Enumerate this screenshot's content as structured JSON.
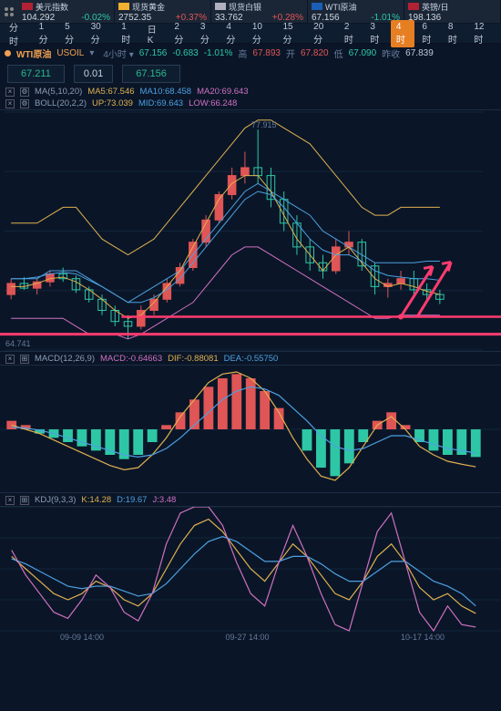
{
  "tickers": [
    {
      "name": "美元指数",
      "price": "104.292",
      "chg": "-0.02%",
      "dir": "neg",
      "flag": "#b22234"
    },
    {
      "name": "现货黄金",
      "price": "2752.35",
      "chg": "+0.37%",
      "dir": "pos",
      "flag": "#f0b030"
    },
    {
      "name": "现货白银",
      "price": "33.762",
      "chg": "+0.28%",
      "dir": "pos",
      "flag": "#b0b0c0"
    },
    {
      "name": "WTI原油",
      "price": "67.156",
      "chg": "-1.01%",
      "dir": "neg",
      "flag": "#1a5fb4"
    },
    {
      "name": "英镑/日",
      "price": "198.136",
      "chg": "",
      "dir": "pos",
      "flag": "#b22234"
    }
  ],
  "timeframes": [
    "分时",
    "1分",
    "5分",
    "30分",
    "1时",
    "日K",
    "2分",
    "3分",
    "4分",
    "10分",
    "15分",
    "20分",
    "2时",
    "3时",
    "4时",
    "6时",
    "8时",
    "12时"
  ],
  "tf_active": "4时",
  "instrument": {
    "name": "WTI原油",
    "code": "USOIL",
    "period": "4小时",
    "last": "67.156",
    "chg": "-0.683",
    "pct": "-1.01%",
    "high_l": "高",
    "high": "67.893",
    "open_l": "开",
    "open": "67.820",
    "low_l": "低",
    "low": "67.090",
    "close_l": "昨收",
    "close": "67.839"
  },
  "priceboxes": {
    "bid": "67.211",
    "mid": "0.01",
    "ask": "67.156"
  },
  "ma": {
    "name": "MA(5,10,20)",
    "v1l": "MA5:",
    "v1": "67.546",
    "v2l": "MA10:",
    "v2": "68.458",
    "v3l": "MA20:",
    "v3": "69.643",
    "c1": "#e0b050",
    "c2": "#4da0e0",
    "c3": "#d070c0"
  },
  "boll": {
    "name": "BOLL(20,2,2)",
    "upl": "UP:",
    "up": "73.039",
    "midl": "MID:",
    "mid": "69.643",
    "lowl": "LOW:",
    "low": "66.248",
    "cu": "#e0b050",
    "cm": "#4da0e0",
    "cl": "#d070c0"
  },
  "price_chart": {
    "high_marker": "77.915",
    "low_marker": "64.741",
    "ylim": [
      64,
      79
    ],
    "boll_up": [
      72,
      72,
      72,
      72.5,
      73,
      73,
      72,
      71,
      70.5,
      70,
      70.5,
      71,
      72,
      73,
      74,
      75,
      76,
      77,
      78,
      78.5,
      78.5,
      78,
      77.5,
      77,
      76,
      75,
      74,
      73,
      72.5,
      72.5,
      73,
      73,
      73,
      73
    ],
    "boll_mid": [
      68.5,
      68.5,
      68.5,
      69,
      69,
      69,
      68.5,
      68,
      67.5,
      67,
      67.5,
      68,
      68.5,
      69,
      70,
      71,
      72,
      73,
      74,
      74.5,
      74,
      73.5,
      73,
      72.5,
      71.5,
      71,
      70.5,
      70,
      69.5,
      69.5,
      69.5,
      69.5,
      69.6,
      69.6
    ],
    "boll_low": [
      66,
      66,
      66,
      66,
      66,
      65.5,
      65,
      65,
      65,
      64.7,
      65,
      65.5,
      66,
      66.5,
      67,
      68,
      69,
      70,
      70.5,
      70.5,
      70,
      69.5,
      69,
      68.5,
      68,
      67.5,
      67,
      66.5,
      66,
      66,
      66.2,
      66.2,
      66.2,
      66.2
    ],
    "ma5": [
      68,
      68,
      68.2,
      68.5,
      68.6,
      68.3,
      67.8,
      67.2,
      66.5,
      66,
      66.2,
      67,
      68,
      69,
      70.5,
      72,
      73.5,
      74.5,
      75,
      75,
      74,
      72.5,
      71,
      70,
      69,
      70,
      70.5,
      69.5,
      68.5,
      68,
      68.2,
      68,
      67.7,
      67.5
    ],
    "ma10": [
      68.5,
      68.5,
      68.6,
      68.8,
      68.9,
      68.8,
      68.4,
      68,
      67.5,
      67,
      67,
      67.3,
      67.8,
      68.5,
      69.5,
      70.5,
      71.5,
      72.5,
      73.5,
      74,
      73.8,
      73,
      72,
      71,
      70.3,
      70,
      70,
      69.6,
      69,
      68.7,
      68.6,
      68.5,
      68.5,
      68.4
    ],
    "candles": [
      [
        67.5,
        68.5,
        67.2,
        68.2
      ],
      [
        68.2,
        68.6,
        67.8,
        67.9
      ],
      [
        67.9,
        68.5,
        67.5,
        68.3
      ],
      [
        68.3,
        69.0,
        68.0,
        68.8
      ],
      [
        68.8,
        69.2,
        68.3,
        68.5
      ],
      [
        68.5,
        68.7,
        67.6,
        67.8
      ],
      [
        67.8,
        68.0,
        67.0,
        67.2
      ],
      [
        67.2,
        67.5,
        66.2,
        66.5
      ],
      [
        66.5,
        66.8,
        65.5,
        65.8
      ],
      [
        65.8,
        66.2,
        64.7,
        65.5
      ],
      [
        65.5,
        66.8,
        65.3,
        66.5
      ],
      [
        66.5,
        67.5,
        66.2,
        67.2
      ],
      [
        67.2,
        68.5,
        67.0,
        68.2
      ],
      [
        68.2,
        69.5,
        68.0,
        69.2
      ],
      [
        69.2,
        71.0,
        69.0,
        70.8
      ],
      [
        70.8,
        72.5,
        70.5,
        72.2
      ],
      [
        72.2,
        74.0,
        72.0,
        73.8
      ],
      [
        73.8,
        75.5,
        73.5,
        75.0
      ],
      [
        75.0,
        76.5,
        74.5,
        75.5
      ],
      [
        75.5,
        77.9,
        74.5,
        75.0
      ],
      [
        75.0,
        75.5,
        73.0,
        73.5
      ],
      [
        73.5,
        74.0,
        71.5,
        72.0
      ],
      [
        72.0,
        72.5,
        70.0,
        70.5
      ],
      [
        70.5,
        71.0,
        69.0,
        69.5
      ],
      [
        69.5,
        70.0,
        68.5,
        69.0
      ],
      [
        69.0,
        71.0,
        68.8,
        70.5
      ],
      [
        70.5,
        71.5,
        70.0,
        70.8
      ],
      [
        70.8,
        71.0,
        69.0,
        69.3
      ],
      [
        69.3,
        69.5,
        67.5,
        68.0
      ],
      [
        68.0,
        68.5,
        67.3,
        68.2
      ],
      [
        68.2,
        69.0,
        67.8,
        68.5
      ],
      [
        68.5,
        69.0,
        67.5,
        67.8
      ],
      [
        67.8,
        68.2,
        67.0,
        67.5
      ],
      [
        67.5,
        67.8,
        66.9,
        67.2
      ]
    ],
    "support1_y": 66.1,
    "support2_y": 65.0,
    "grid_color": "#12243a",
    "bg": "#0a1628",
    "up_color": "#e05555",
    "down_color": "#2ec7a5"
  },
  "macd": {
    "name": "MACD(12,26,9)",
    "vl": "MACD:",
    "v": "-0.64663",
    "dl": "DIF:",
    "d": "-0.88081",
    "del": "DEA:",
    "de": "-0.55750",
    "cv": "#d070c0",
    "cd": "#e0b050",
    "cde": "#4da0e0",
    "ylim": [
      -1.5,
      1.5
    ],
    "hist": [
      0.2,
      0.1,
      -0.1,
      -0.2,
      -0.3,
      -0.4,
      -0.5,
      -0.6,
      -0.7,
      -0.6,
      -0.3,
      0.1,
      0.4,
      0.7,
      1.0,
      1.2,
      1.3,
      1.2,
      0.9,
      0.5,
      0.0,
      -0.5,
      -0.9,
      -1.1,
      -0.8,
      -0.3,
      0.2,
      0.4,
      0.1,
      -0.3,
      -0.5,
      -0.6,
      -0.6,
      -0.65
    ],
    "dif": [
      0.1,
      0.0,
      -0.1,
      -0.25,
      -0.4,
      -0.55,
      -0.7,
      -0.85,
      -0.95,
      -0.9,
      -0.6,
      -0.2,
      0.3,
      0.7,
      1.1,
      1.3,
      1.35,
      1.2,
      0.9,
      0.4,
      -0.2,
      -0.7,
      -1.1,
      -1.2,
      -0.9,
      -0.4,
      0.1,
      0.3,
      0.0,
      -0.4,
      -0.6,
      -0.75,
      -0.82,
      -0.88
    ],
    "dea": [
      0.05,
      0.03,
      -0.02,
      -0.1,
      -0.2,
      -0.3,
      -0.4,
      -0.5,
      -0.6,
      -0.65,
      -0.6,
      -0.45,
      -0.2,
      0.1,
      0.4,
      0.7,
      0.9,
      1.0,
      0.95,
      0.8,
      0.5,
      0.2,
      -0.15,
      -0.4,
      -0.5,
      -0.45,
      -0.3,
      -0.15,
      -0.15,
      -0.25,
      -0.35,
      -0.45,
      -0.5,
      -0.56
    ]
  },
  "kdj": {
    "name": "KDJ(9,3,3)",
    "kl": "K:",
    "k": "14.28",
    "dl": "D:",
    "d": "19.67",
    "jl": "J:",
    "j": "3.48",
    "ck": "#e0b050",
    "cd": "#4da0e0",
    "cj": "#d070c0",
    "ylim": [
      0,
      100
    ],
    "K": [
      60,
      50,
      40,
      30,
      25,
      30,
      40,
      35,
      25,
      20,
      30,
      50,
      70,
      85,
      90,
      80,
      65,
      50,
      40,
      55,
      70,
      60,
      45,
      30,
      25,
      40,
      60,
      70,
      55,
      35,
      25,
      30,
      20,
      14
    ],
    "D": [
      58,
      54,
      48,
      42,
      36,
      34,
      36,
      36,
      32,
      28,
      30,
      38,
      50,
      62,
      72,
      76,
      72,
      64,
      56,
      56,
      60,
      60,
      54,
      46,
      40,
      40,
      48,
      56,
      56,
      48,
      40,
      36,
      30,
      20
    ],
    "J": [
      65,
      45,
      30,
      15,
      10,
      25,
      45,
      35,
      15,
      8,
      30,
      70,
      95,
      100,
      100,
      85,
      55,
      30,
      20,
      55,
      85,
      60,
      30,
      5,
      0,
      40,
      80,
      95,
      55,
      15,
      0,
      20,
      5,
      3
    ]
  },
  "xaxis": [
    "09-09 14:00",
    "09-27 14:00",
    "10-17 14:00"
  ]
}
